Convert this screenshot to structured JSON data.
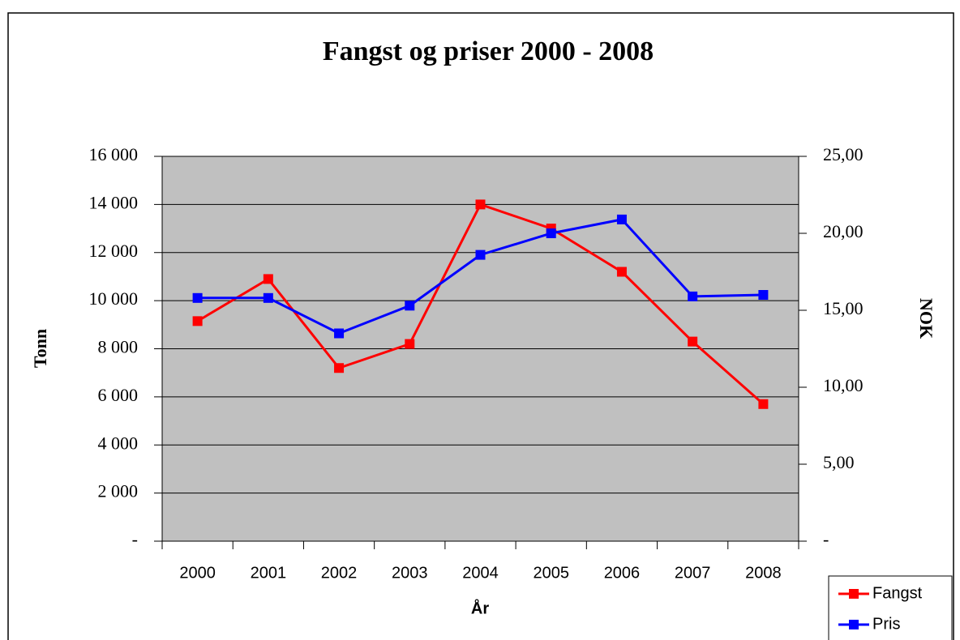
{
  "chart_data": {
    "type": "line",
    "title": "Fangst og priser 2000 - 2008",
    "x_label": "År",
    "y_label": "Tonn",
    "y2_label": "NOK",
    "categories": [
      "2000",
      "2001",
      "2002",
      "2003",
      "2004",
      "2005",
      "2006",
      "2007",
      "2008"
    ],
    "series": [
      {
        "name": "Fangst",
        "color": "#ff0000",
        "values": [
          9150,
          10900,
          7200,
          8200,
          14000,
          13000,
          11200,
          8300,
          5700
        ]
      },
      {
        "name": "Pris",
        "color": "#0000ff",
        "axis": "y2",
        "values": [
          15.8,
          15.8,
          13.5,
          15.3,
          18.6,
          20.0,
          20.9,
          15.9,
          16.0
        ]
      }
    ],
    "ylim": [
      0,
      16000
    ],
    "yticks": [
      {
        "value": 0,
        "label": "-"
      },
      {
        "value": 2000,
        "label": "2 000"
      },
      {
        "value": 4000,
        "label": "4 000"
      },
      {
        "value": 6000,
        "label": "6 000"
      },
      {
        "value": 8000,
        "label": "8 000"
      },
      {
        "value": 10000,
        "label": "10 000"
      },
      {
        "value": 12000,
        "label": "12 000"
      },
      {
        "value": 14000,
        "label": "14 000"
      },
      {
        "value": 16000,
        "label": "16 000"
      }
    ],
    "y2lim": [
      0,
      25
    ],
    "y2ticks": [
      {
        "value": 0,
        "label": "-"
      },
      {
        "value": 5,
        "label": "5,00"
      },
      {
        "value": 10,
        "label": "10,00"
      },
      {
        "value": 15,
        "label": "15,00"
      },
      {
        "value": 20,
        "label": "20,00"
      },
      {
        "value": 25,
        "label": "25,00"
      }
    ],
    "grid": true,
    "legend": "bottom-right",
    "plot_background": "#c0c0c0"
  }
}
